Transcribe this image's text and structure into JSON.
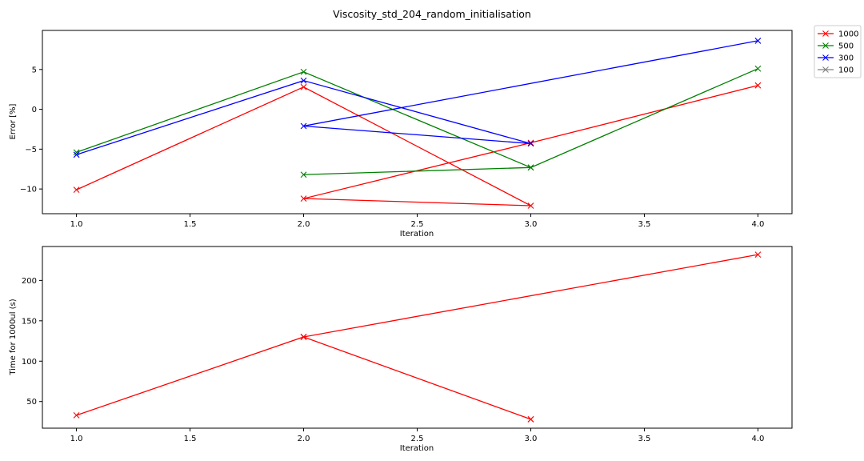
{
  "chart_data": [
    {
      "type": "line",
      "title": "Viscosity_std_204_random_initialisation",
      "xlabel": "Iteration",
      "ylabel": "Error [%]",
      "xlim": [
        0.85,
        4.15
      ],
      "ylim": [
        -13.1,
        9.9
      ],
      "xticks": [
        "1.0",
        "1.5",
        "2.0",
        "2.5",
        "3.0",
        "3.5",
        "4.0"
      ],
      "yticks": [
        "5",
        "0",
        "−5",
        "−10"
      ],
      "grid": false,
      "legend": "outside-top-right",
      "series": [
        {
          "name": "1000",
          "color": "#ff0000",
          "x": [
            1.0,
            2.0,
            3.0,
            2.0,
            3.0,
            4.0
          ],
          "y": [
            -10.1,
            2.8,
            -12.1,
            -11.2,
            -4.2,
            3.0
          ]
        },
        {
          "name": "500",
          "color": "#008000",
          "x": [
            1.0,
            2.0,
            3.0,
            2.0,
            3.0,
            4.0
          ],
          "y": [
            -5.4,
            4.7,
            -7.3,
            -8.2,
            -7.3,
            5.1
          ]
        },
        {
          "name": "300",
          "color": "#0000ff",
          "x": [
            1.0,
            2.0,
            3.0,
            2.0,
            4.0
          ],
          "y": [
            -5.7,
            3.6,
            -4.3,
            -2.1,
            8.6
          ]
        },
        {
          "name": "100",
          "color": "#808080",
          "x": [],
          "y": []
        }
      ]
    },
    {
      "type": "line",
      "xlabel": "Iteration",
      "ylabel": "Time for 1000ul (s)",
      "xlim": [
        0.85,
        4.15
      ],
      "ylim": [
        17,
        242
      ],
      "xticks": [
        "1.0",
        "1.5",
        "2.0",
        "2.5",
        "3.0",
        "3.5",
        "4.0"
      ],
      "yticks": [
        "200",
        "150",
        "100",
        "50"
      ],
      "grid": false,
      "series": [
        {
          "color": "#ff0000",
          "x": [
            1.0,
            2.0,
            3.0,
            2.0,
            3.0,
            2.0,
            4.0
          ],
          "y": [
            33,
            130,
            28,
            130,
            28,
            130,
            232
          ]
        }
      ]
    }
  ]
}
